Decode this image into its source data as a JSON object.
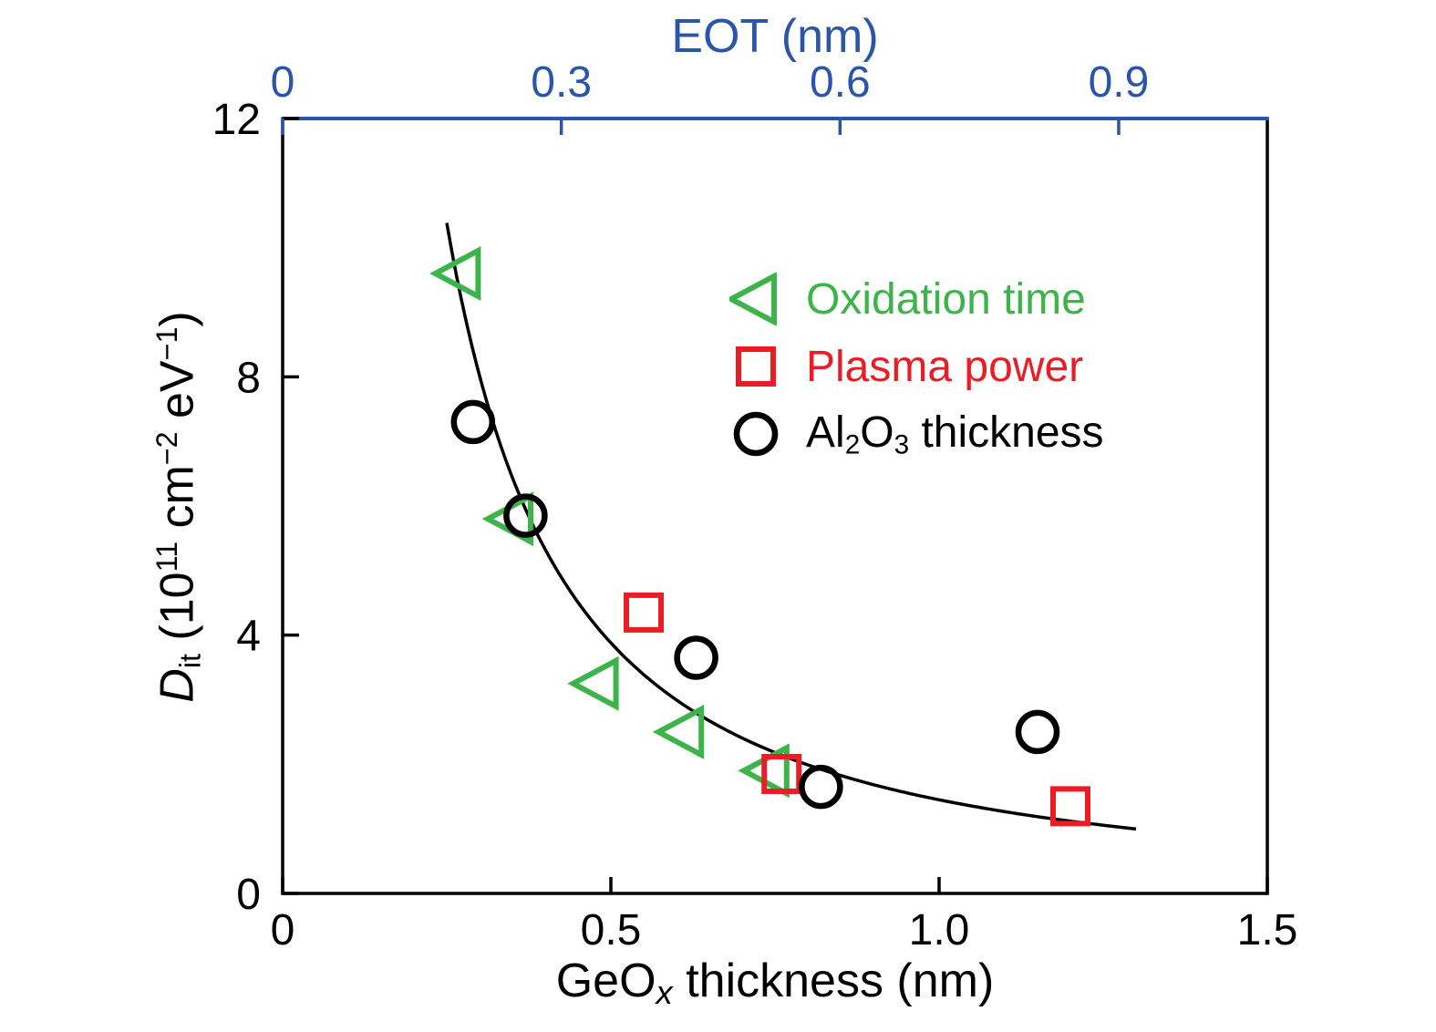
{
  "chart_data": {
    "type": "scatter",
    "grid": false,
    "legend_position": "upper-right-inside",
    "x_axis": {
      "title_parts": [
        {
          "t": "GeO"
        },
        {
          "t": "x",
          "s": "subitalic"
        },
        {
          "t": " thickness (nm)"
        }
      ],
      "min": 0,
      "max": 1.5,
      "ticks": [
        {
          "v": 0,
          "label": "0"
        },
        {
          "v": 0.5,
          "label": "0.5"
        },
        {
          "v": 1.0,
          "label": "1.0"
        },
        {
          "v": 1.5,
          "label": "1.5"
        }
      ],
      "color": "#000000"
    },
    "y_axis": {
      "title_parts": [
        {
          "t": "D",
          "s": "italic"
        },
        {
          "t": "it",
          "s": "sub"
        },
        {
          "t": " (10"
        },
        {
          "t": "11",
          "s": "sup"
        },
        {
          "t": " cm"
        },
        {
          "t": "−2",
          "s": "sup"
        },
        {
          "t": " eV"
        },
        {
          "t": "−1",
          "s": "sup"
        },
        {
          "t": ")"
        }
      ],
      "min": 0,
      "max": 12,
      "ticks": [
        {
          "v": 0,
          "label": "0"
        },
        {
          "v": 4,
          "label": "4"
        },
        {
          "v": 8,
          "label": "8"
        },
        {
          "v": 12,
          "label": "12"
        }
      ],
      "color": "#000000"
    },
    "top_axis": {
      "label": "EOT (nm)",
      "min": 0,
      "max": 1.06,
      "ticks": [
        {
          "v": 0,
          "label": "0"
        },
        {
          "v": 0.3,
          "label": "0.3"
        },
        {
          "v": 0.6,
          "label": "0.6"
        },
        {
          "v": 0.9,
          "label": "0.9"
        }
      ],
      "color": "#2b55a8"
    },
    "series": [
      {
        "name": "Oxidation time",
        "label_parts": [
          {
            "t": "Oxidation time"
          }
        ],
        "marker": "triangle-left",
        "color": "#3cb44a",
        "points": [
          [
            0.27,
            9.6
          ],
          [
            0.35,
            5.8
          ],
          [
            0.48,
            3.25
          ],
          [
            0.61,
            2.5
          ],
          [
            0.74,
            1.9
          ]
        ]
      },
      {
        "name": "Plasma power",
        "label_parts": [
          {
            "t": "Plasma power"
          }
        ],
        "marker": "square",
        "color": "#ec1c24",
        "points": [
          [
            0.55,
            4.35
          ],
          [
            0.76,
            1.85
          ],
          [
            1.2,
            1.35
          ]
        ]
      },
      {
        "name": "Al2O3 thickness",
        "label_parts": [
          {
            "t": "Al"
          },
          {
            "t": "2",
            "s": "sub"
          },
          {
            "t": "O"
          },
          {
            "t": "3",
            "s": "sub"
          },
          {
            "t": " thickness"
          }
        ],
        "marker": "circle",
        "color": "#000000",
        "points": [
          [
            0.29,
            7.3
          ],
          [
            0.37,
            5.85
          ],
          [
            0.63,
            3.65
          ],
          [
            0.82,
            1.65
          ],
          [
            1.15,
            2.5
          ]
        ]
      }
    ],
    "fit_curve": {
      "type": "power",
      "coefficient": 1.45,
      "exponent": -1.42,
      "x_start": 0.25,
      "x_end": 1.3,
      "color": "#000000"
    }
  }
}
